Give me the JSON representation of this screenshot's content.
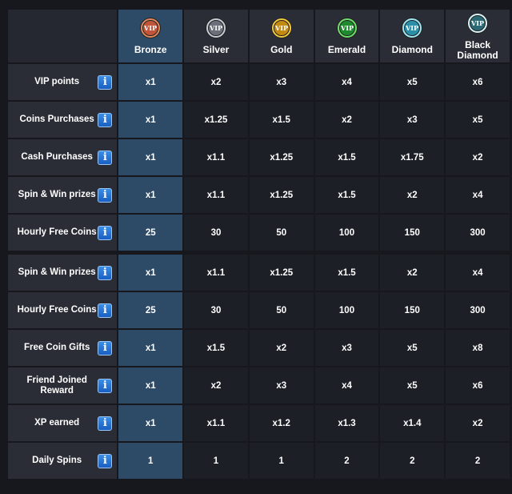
{
  "tiers": [
    {
      "name": "Bronze",
      "badge_text": "VIP",
      "color": "#c0553a",
      "ring": "#e08a5e"
    },
    {
      "name": "Silver",
      "badge_text": "VIP",
      "color": "#6a6f7a",
      "ring": "#c8cdd6"
    },
    {
      "name": "Gold",
      "badge_text": "VIP",
      "color": "#c28a10",
      "ring": "#f3c93d"
    },
    {
      "name": "Emerald",
      "badge_text": "VIP",
      "color": "#1f8a2e",
      "ring": "#6fe06b"
    },
    {
      "name": "Diamond",
      "badge_text": "VIP",
      "color": "#2a8fa8",
      "ring": "#9ee8f5"
    },
    {
      "name": "Black Diamond",
      "badge_text": "VIP",
      "color": "#2b6a74",
      "ring": "#d8f4f8"
    }
  ],
  "info_glyph": "i",
  "rows": [
    {
      "label": "VIP points",
      "values": [
        "x1",
        "x2",
        "x3",
        "x4",
        "x5",
        "x6"
      ]
    },
    {
      "label": "Coins Purchases",
      "values": [
        "x1",
        "x1.25",
        "x1.5",
        "x2",
        "x3",
        "x5"
      ]
    },
    {
      "label": "Cash Purchases",
      "values": [
        "x1",
        "x1.1",
        "x1.25",
        "x1.5",
        "x1.75",
        "x2"
      ]
    },
    {
      "label": "Spin & Win prizes",
      "values": [
        "x1",
        "x1.1",
        "x1.25",
        "x1.5",
        "x2",
        "x4"
      ]
    },
    {
      "label": "Hourly Free Coins",
      "values": [
        "25",
        "30",
        "50",
        "100",
        "150",
        "300"
      ]
    },
    {
      "label": "Spin & Win prizes",
      "values": [
        "x1",
        "x1.1",
        "x1.25",
        "x1.5",
        "x2",
        "x4"
      ]
    },
    {
      "label": "Hourly Free Coins",
      "values": [
        "25",
        "30",
        "50",
        "100",
        "150",
        "300"
      ]
    },
    {
      "label": "Free Coin Gifts",
      "values": [
        "x1",
        "x1.5",
        "x2",
        "x3",
        "x5",
        "x8"
      ]
    },
    {
      "label": "Friend Joined Reward",
      "values": [
        "x1",
        "x2",
        "x3",
        "x4",
        "x5",
        "x6"
      ]
    },
    {
      "label": "XP earned",
      "values": [
        "x1",
        "x1.1",
        "x1.2",
        "x1.3",
        "x1.4",
        "x2"
      ]
    },
    {
      "label": "Daily Spins",
      "values": [
        "1",
        "1",
        "1",
        "2",
        "2",
        "2"
      ]
    }
  ],
  "colors": {
    "background": "#16181e",
    "label_cell": "#2a2d36",
    "value_cell": "#1c1f26",
    "highlight_column": "#2d4a66",
    "info_button": "#2a7ad8"
  }
}
